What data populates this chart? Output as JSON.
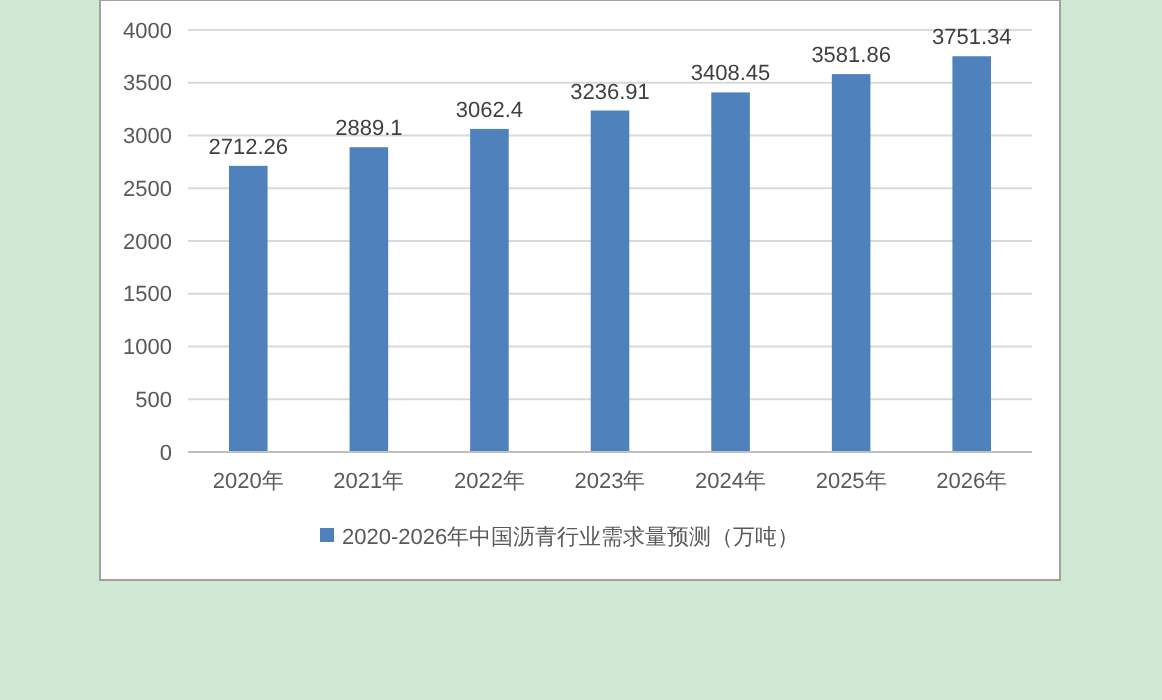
{
  "chart_data": {
    "type": "bar",
    "categories": [
      "2020年",
      "2021年",
      "2022年",
      "2023年",
      "2024年",
      "2025年",
      "2026年"
    ],
    "series": [
      {
        "name": "2020-2026年中国沥青行业需求量预测（万吨）",
        "color": "#4f81bd",
        "values": [
          2712.26,
          2889.1,
          3062.4,
          3236.91,
          3408.45,
          3581.86,
          3751.34
        ]
      }
    ],
    "ylim": [
      0,
      4000
    ],
    "yticks": [
      0,
      500,
      1000,
      1500,
      2000,
      2500,
      3000,
      3500,
      4000
    ],
    "grid": "y",
    "legend": "bottom",
    "data_labels": true
  }
}
